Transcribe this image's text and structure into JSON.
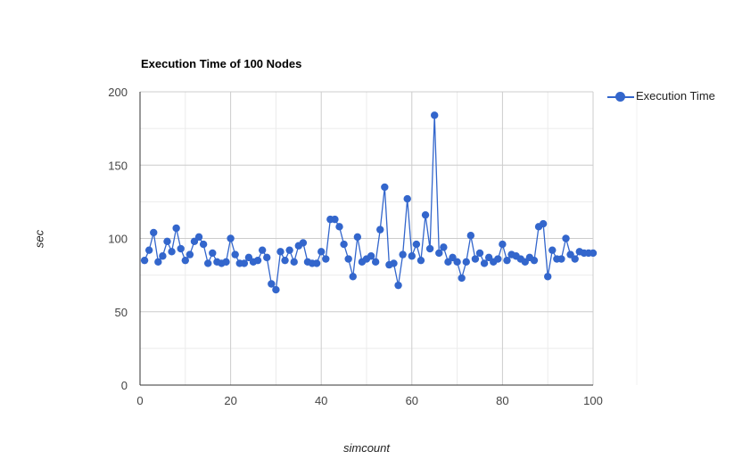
{
  "chart_data": {
    "type": "line",
    "title": "Execution Time of 100 Nodes",
    "xlabel": "simcount",
    "ylabel": "sec",
    "xlim": [
      0,
      100
    ],
    "ylim": [
      0,
      200
    ],
    "xticks": [
      0,
      20,
      40,
      60,
      80,
      100
    ],
    "yticks": [
      0,
      50,
      100,
      150,
      200
    ],
    "grid": true,
    "legend_position": "right",
    "series": [
      {
        "name": "Execution Time",
        "color": "#3366cc",
        "marker": "circle",
        "x": [
          1,
          2,
          3,
          4,
          5,
          6,
          7,
          8,
          9,
          10,
          11,
          12,
          13,
          14,
          15,
          16,
          17,
          18,
          19,
          20,
          21,
          22,
          23,
          24,
          25,
          26,
          27,
          28,
          29,
          30,
          31,
          32,
          33,
          34,
          35,
          36,
          37,
          38,
          39,
          40,
          41,
          42,
          43,
          44,
          45,
          46,
          47,
          48,
          49,
          50,
          51,
          52,
          53,
          54,
          55,
          56,
          57,
          58,
          59,
          60,
          61,
          62,
          63,
          64,
          65,
          66,
          67,
          68,
          69,
          70,
          71,
          72,
          73,
          74,
          75,
          76,
          77,
          78,
          79,
          80,
          81,
          82,
          83,
          84,
          85,
          86,
          87,
          88,
          89,
          90,
          91,
          92,
          93,
          94,
          95,
          96,
          97,
          98,
          99,
          100
        ],
        "y": [
          85,
          92,
          104,
          84,
          88,
          98,
          91,
          107,
          93,
          85,
          89,
          98,
          101,
          96,
          83,
          90,
          84,
          83,
          84,
          100,
          89,
          83,
          83,
          87,
          84,
          85,
          92,
          87,
          69,
          65,
          91,
          85,
          92,
          84,
          95,
          97,
          84,
          83,
          83,
          91,
          86,
          113,
          113,
          108,
          96,
          86,
          74,
          101,
          84,
          86,
          88,
          84,
          106,
          135,
          82,
          83,
          68,
          89,
          127,
          88,
          96,
          85,
          116,
          93,
          184,
          90,
          94,
          84,
          87,
          84,
          73,
          84,
          102,
          86,
          90,
          83,
          87,
          84,
          86,
          96,
          85,
          89,
          88,
          86,
          84,
          87,
          85,
          108,
          110,
          74,
          92,
          86,
          86,
          100,
          89,
          86,
          91,
          90,
          90,
          90
        ]
      }
    ]
  }
}
